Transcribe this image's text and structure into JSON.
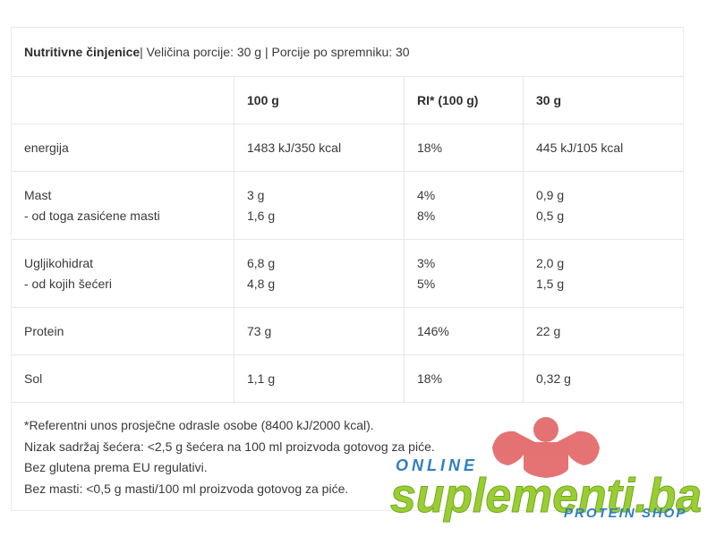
{
  "header": {
    "title": "Nutritivne činjenice",
    "details": " | Veličina porcije: 30 g | Porcije po spremniku: 30"
  },
  "table": {
    "columns": [
      "",
      "100 g",
      "RI* (100 g)",
      "30 g"
    ],
    "rows": [
      {
        "label": [
          "energija"
        ],
        "per100": [
          "1483 kJ/350 kcal"
        ],
        "ri": [
          "18%"
        ],
        "per30": [
          "445 kJ/105 kcal"
        ]
      },
      {
        "label": [
          "Mast",
          "- od toga zasićene masti"
        ],
        "per100": [
          "3 g",
          "1,6 g"
        ],
        "ri": [
          "4%",
          "8%"
        ],
        "per30": [
          "0,9 g",
          "0,5 g"
        ]
      },
      {
        "label": [
          "Ugljikohidrat",
          "- od kojih šećeri"
        ],
        "per100": [
          "6,8 g",
          "4,8 g"
        ],
        "ri": [
          "3%",
          "5%"
        ],
        "per30": [
          "2,0 g",
          "1,5 g"
        ]
      },
      {
        "label": [
          "Protein"
        ],
        "per100": [
          "73 g"
        ],
        "ri": [
          "146%"
        ],
        "per30": [
          "22 g"
        ]
      },
      {
        "label": [
          "Sol"
        ],
        "per100": [
          "1,1 g"
        ],
        "ri": [
          "18%"
        ],
        "per30": [
          "0,32 g"
        ]
      }
    ]
  },
  "footnotes": [
    "*Referentni unos prosječne odrasle osobe (8400 kJ/2000 kcal).",
    "Nizak sadržaj šećera: <2,5 g šećera na 100 ml proizvoda gotovog za piće.",
    "Bez glutena prema EU regulativi.",
    "Bez masti: <0,5 g masti/100 ml proizvoda gotovog za piće."
  ],
  "watermark": {
    "text_top": "ONLINE",
    "text_main": "suplementi.ba",
    "text_bottom": "PROTEIN SHOP",
    "colors": {
      "figure": "#e05a5a",
      "main": "#9acd32",
      "sub": "#2f7fc0"
    }
  }
}
